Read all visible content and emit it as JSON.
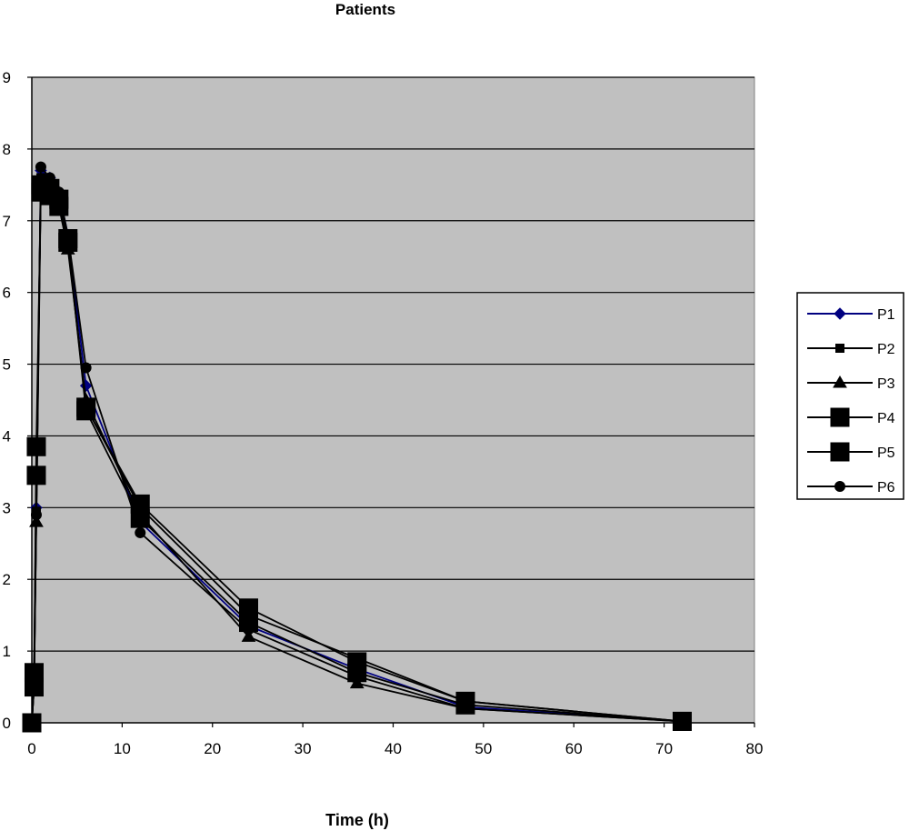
{
  "chart_data": {
    "type": "line",
    "title": "Patients",
    "xlabel": "Time (h)",
    "ylabel": "",
    "xlim": [
      0,
      80
    ],
    "ylim": [
      0,
      9
    ],
    "xticks": [
      0,
      10,
      20,
      30,
      40,
      50,
      60,
      70,
      80
    ],
    "yticks": [
      0,
      1,
      2,
      3,
      4,
      5,
      6,
      7,
      8,
      9
    ],
    "grid": "horizontal",
    "plot_background": "#c0c0c0",
    "legend_position": "right",
    "series": [
      {
        "name": "P1",
        "color": "#000080",
        "marker": "diamond",
        "x": [
          0,
          0.25,
          0.5,
          1,
          2,
          3,
          4,
          6,
          12,
          24,
          36,
          48,
          72
        ],
        "y": [
          0,
          0.6,
          3.0,
          7.7,
          7.6,
          7.4,
          6.8,
          4.7,
          2.8,
          1.35,
          0.75,
          0.22,
          0.02
        ]
      },
      {
        "name": "P2",
        "color": "#000000",
        "marker": "small-square",
        "x": [
          0,
          0.25,
          0.5,
          1,
          2,
          3,
          4,
          6,
          12,
          24,
          36,
          48,
          72
        ],
        "y": [
          0,
          0.5,
          2.95,
          7.6,
          7.5,
          7.3,
          6.7,
          4.4,
          3.0,
          1.5,
          0.9,
          0.3,
          0.02
        ]
      },
      {
        "name": "P3",
        "color": "#000000",
        "marker": "triangle",
        "x": [
          0,
          0.25,
          0.5,
          1,
          2,
          3,
          4,
          6,
          12,
          24,
          36,
          48,
          72
        ],
        "y": [
          0,
          0.5,
          2.8,
          7.5,
          7.4,
          7.2,
          6.6,
          4.5,
          2.9,
          1.2,
          0.55,
          0.2,
          0.02
        ]
      },
      {
        "name": "P4",
        "color": "#000000",
        "marker": "large-square",
        "x": [
          0,
          0.25,
          0.5,
          1,
          2,
          3,
          4,
          6,
          12,
          24,
          36,
          48,
          72
        ],
        "y": [
          0,
          0.7,
          3.45,
          7.5,
          7.45,
          7.3,
          6.75,
          4.4,
          3.05,
          1.6,
          0.85,
          0.3,
          0.02
        ]
      },
      {
        "name": "P5",
        "color": "#000000",
        "marker": "large-square",
        "x": [
          0,
          0.25,
          0.5,
          1,
          2,
          3,
          4,
          6,
          12,
          24,
          36,
          48,
          72
        ],
        "y": [
          0,
          0.5,
          3.85,
          7.4,
          7.35,
          7.2,
          6.7,
          4.35,
          2.85,
          1.4,
          0.7,
          0.25,
          0.02
        ]
      },
      {
        "name": "P6",
        "color": "#000000",
        "marker": "circle",
        "x": [
          0,
          0.25,
          0.5,
          1,
          2,
          3,
          4,
          6,
          12,
          24,
          36,
          48,
          72
        ],
        "y": [
          0,
          0.6,
          2.9,
          7.75,
          7.6,
          7.4,
          6.8,
          4.95,
          2.65,
          1.3,
          0.65,
          0.2,
          0.02
        ]
      }
    ]
  }
}
